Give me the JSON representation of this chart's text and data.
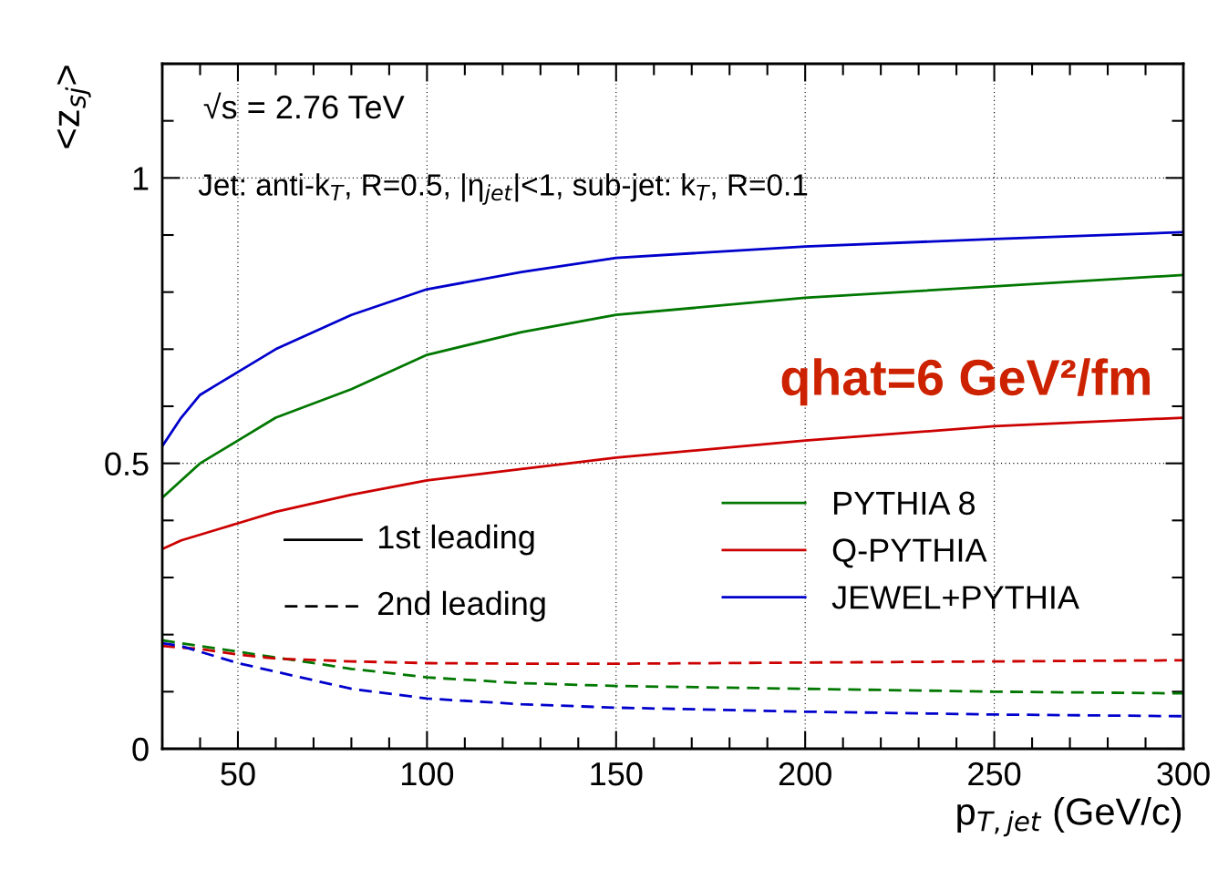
{
  "chart_data": {
    "type": "line",
    "xlabel": "p$_{T,jet}$ (GeV/c)",
    "ylabel": "<z$_{sj}$>",
    "xlim": [
      30,
      300
    ],
    "xticks": [
      50,
      100,
      150,
      200,
      250,
      300
    ],
    "ylim": [
      0,
      1.2
    ],
    "yticks": [
      0,
      0.5,
      1
    ],
    "grid": true,
    "legend": "right",
    "annotations": [
      "√s = 2.76 TeV",
      "Jet: anti-k$_{T}$, R=0.5, |η$_{jet}$|<1, sub-jet: k$_{T}$, R=0.1",
      "qhat=6 GeV²/fm",
      "1st leading",
      "2nd leading"
    ],
    "x": [
      30,
      35,
      40,
      45,
      50,
      60,
      80,
      100,
      125,
      150,
      200,
      250,
      300
    ],
    "series": [
      {
        "name": "PYTHIA 8",
        "color": "#007700",
        "line_style": "solid",
        "values": [
          0.44,
          0.47,
          0.5,
          0.52,
          0.54,
          0.58,
          0.63,
          0.69,
          0.73,
          0.76,
          0.79,
          0.81,
          0.83
        ]
      },
      {
        "name": "Q-PYTHIA",
        "color": "#cc0000",
        "line_style": "solid",
        "values": [
          0.35,
          0.365,
          0.375,
          0.385,
          0.395,
          0.415,
          0.445,
          0.47,
          0.49,
          0.51,
          0.54,
          0.565,
          0.58
        ]
      },
      {
        "name": "JEWEL+PYTHIA",
        "color": "#0000cc",
        "line_style": "solid",
        "values": [
          0.53,
          0.58,
          0.62,
          0.64,
          0.66,
          0.7,
          0.76,
          0.805,
          0.835,
          0.86,
          0.88,
          0.893,
          0.905
        ]
      },
      {
        "color": "#007700",
        "line_style": "dashed",
        "values": [
          0.19,
          0.185,
          0.18,
          0.175,
          0.17,
          0.16,
          0.14,
          0.125,
          0.115,
          0.11,
          0.105,
          0.1,
          0.097
        ]
      },
      {
        "color": "#cc0000",
        "line_style": "dashed",
        "values": [
          0.18,
          0.177,
          0.175,
          0.17,
          0.165,
          0.158,
          0.153,
          0.15,
          0.149,
          0.149,
          0.151,
          0.153,
          0.155
        ]
      },
      {
        "color": "#0000cc",
        "line_style": "dashed",
        "values": [
          0.185,
          0.18,
          0.17,
          0.16,
          0.15,
          0.135,
          0.105,
          0.088,
          0.078,
          0.072,
          0.065,
          0.06,
          0.057
        ]
      }
    ]
  }
}
